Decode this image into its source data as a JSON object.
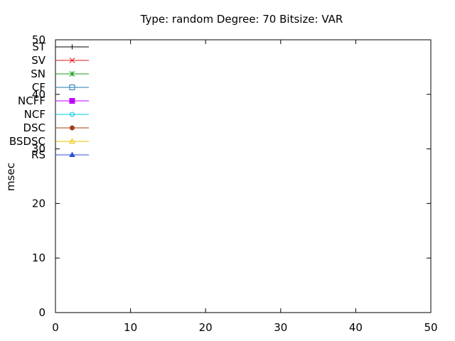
{
  "chart_data": {
    "type": "line",
    "title": "Type: random Degree: 70 Bitsize: VAR",
    "xlabel": "",
    "ylabel": "msec",
    "xlim": [
      0,
      50
    ],
    "ylim": [
      0,
      50
    ],
    "x_ticks": [
      "0",
      "10",
      "20",
      "30",
      "40",
      "50"
    ],
    "y_ticks": [
      "0",
      "10",
      "20",
      "30",
      "40",
      "50"
    ],
    "grid": false,
    "legend_position": "top-left",
    "series": [
      {
        "name": "ST",
        "color": "#000000",
        "marker": "plus",
        "values": []
      },
      {
        "name": "SV",
        "color": "#e31a1c",
        "marker": "cross",
        "values": []
      },
      {
        "name": "SN",
        "color": "#1a9e1a",
        "marker": "star",
        "values": []
      },
      {
        "name": "CF",
        "color": "#1f78b4",
        "marker": "square-open",
        "values": []
      },
      {
        "name": "NCFF",
        "color": "#c000ff",
        "marker": "square-filled",
        "values": []
      },
      {
        "name": "NCF",
        "color": "#00c8d8",
        "marker": "circle-open",
        "values": []
      },
      {
        "name": "DSC",
        "color": "#a0401a",
        "marker": "circle-filled",
        "values": []
      },
      {
        "name": "BSDSC",
        "color": "#e8c000",
        "marker": "triangle-open",
        "values": []
      },
      {
        "name": "RS",
        "color": "#2f50d8",
        "marker": "triangle-filled",
        "values": []
      }
    ]
  }
}
